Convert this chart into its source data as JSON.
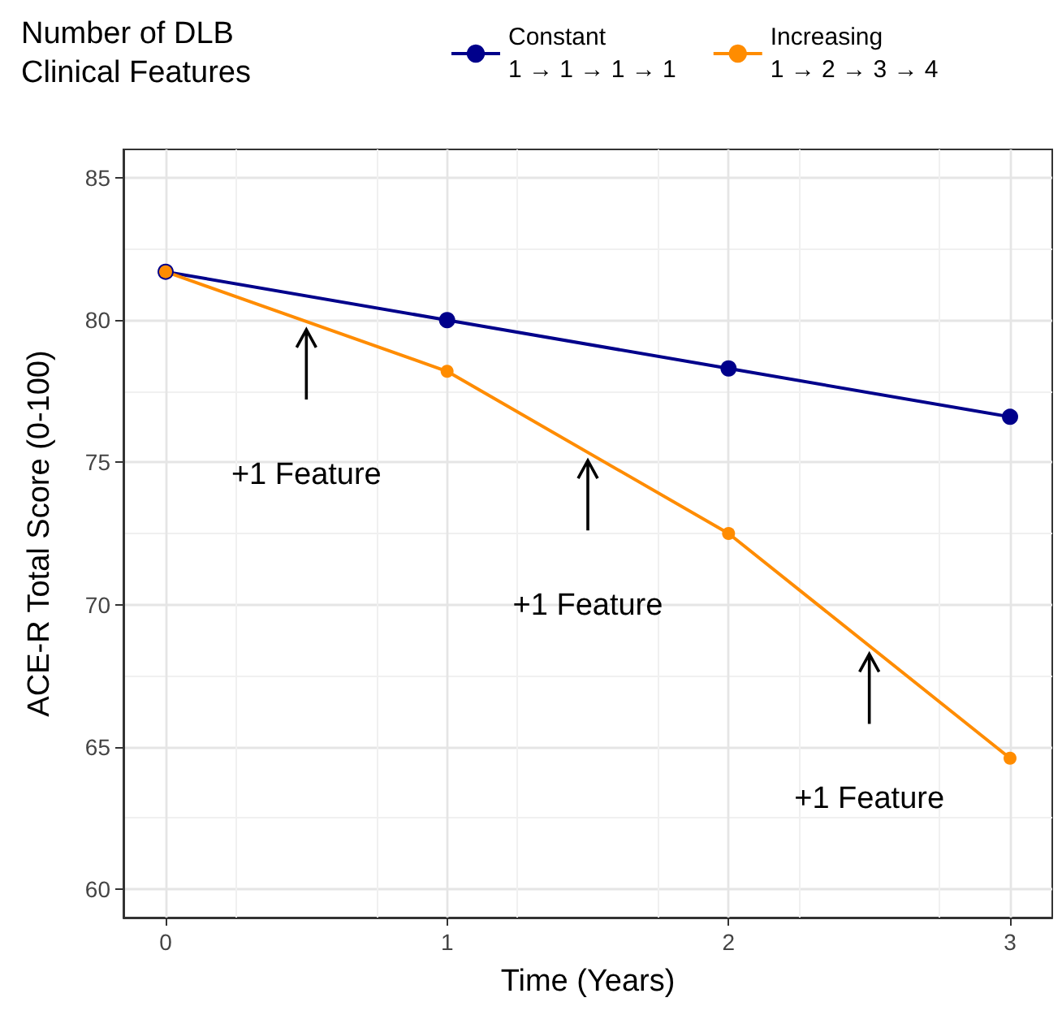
{
  "chart_data": {
    "type": "line",
    "xlabel": "Time (Years)",
    "ylabel": "ACE-R Total Score (0-100)",
    "legend_title": "Number of DLB\nClinical Features",
    "x": [
      0,
      1,
      2,
      3
    ],
    "series": [
      {
        "name": "Constant\n1 → 1 → 1 → 1",
        "color": "#00008b",
        "values": [
          81.7,
          80.0,
          78.3,
          76.6
        ]
      },
      {
        "name": "Increasing\n1 → 2 → 3 → 4",
        "color": "#ff8c00",
        "values": [
          81.7,
          78.2,
          72.5,
          64.6
        ]
      }
    ],
    "xlim": [
      -0.15,
      3.15
    ],
    "xticks": [
      0,
      1,
      2,
      3
    ],
    "ylim": [
      59,
      86
    ],
    "yticks": [
      60,
      65,
      70,
      75,
      80,
      85
    ],
    "annotations": [
      "+1 Feature",
      "+1 Feature",
      "+1 Feature"
    ],
    "grid": true,
    "legend": "top",
    "marker": "circle",
    "line_style": "solid"
  }
}
